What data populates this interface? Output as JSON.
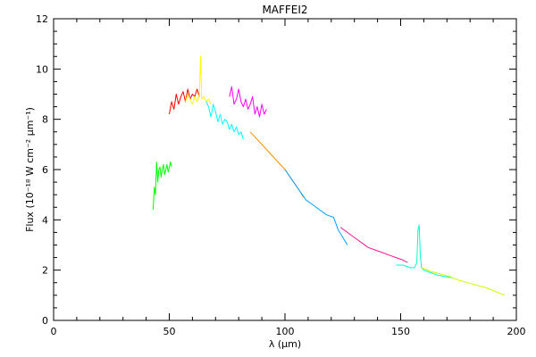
{
  "chart_data": {
    "type": "line",
    "title": "MAFFEI2",
    "xlabel": "λ (μm)",
    "ylabel": "Flux (10⁻¹⁸ W cm⁻² μm⁻¹)",
    "xlim": [
      0,
      200
    ],
    "ylim": [
      0,
      12
    ],
    "x_ticks": [
      0,
      50,
      100,
      150,
      200
    ],
    "y_ticks": [
      0,
      2,
      4,
      6,
      8,
      10,
      12
    ],
    "grid": false,
    "legend": "none",
    "series": [
      {
        "color": "#00ff00",
        "x": [
          43,
          43.5,
          44,
          44.5,
          45,
          45.5,
          46,
          46.5,
          47,
          47.5,
          48,
          48.5,
          49,
          49.5,
          50,
          50.5,
          51
        ],
        "y": [
          4.4,
          5.3,
          5.0,
          6.3,
          5.5,
          6.0,
          6.1,
          5.7,
          6.0,
          6.2,
          5.8,
          6.0,
          6.2,
          5.9,
          6.1,
          6.3,
          6.1
        ]
      },
      {
        "color": "#ff0000",
        "x": [
          50,
          51,
          52,
          53,
          54,
          55,
          56,
          57,
          58,
          59,
          60,
          61,
          62,
          63
        ],
        "y": [
          8.2,
          8.7,
          8.4,
          9.0,
          8.6,
          8.9,
          9.1,
          8.7,
          9.2,
          8.8,
          9.0,
          8.9,
          9.2,
          8.9
        ]
      },
      {
        "color": "#ffff00",
        "x": [
          57,
          58,
          59,
          60,
          61,
          62,
          63,
          63.5,
          64,
          65,
          66,
          67,
          68
        ],
        "y": [
          8.7,
          9.0,
          8.8,
          8.6,
          8.9,
          8.7,
          9.0,
          10.5,
          8.8,
          8.9,
          8.7,
          8.8,
          8.6
        ]
      },
      {
        "color": "#00ffff",
        "x": [
          66,
          67,
          68,
          69,
          70,
          71,
          72,
          73,
          74,
          75,
          76,
          77,
          78,
          79,
          80,
          81,
          82
        ],
        "y": [
          8.7,
          8.5,
          8.1,
          8.6,
          8.3,
          7.9,
          8.2,
          7.8,
          8.0,
          7.9,
          7.6,
          7.8,
          7.5,
          7.7,
          7.4,
          7.5,
          7.2
        ]
      },
      {
        "color": "#ff00ff",
        "x": [
          76,
          77,
          78,
          79,
          80,
          81,
          82,
          83,
          84,
          85,
          86,
          87,
          88,
          89,
          90,
          91,
          92
        ],
        "y": [
          8.9,
          9.3,
          8.6,
          8.8,
          9.2,
          8.7,
          8.5,
          8.8,
          8.4,
          8.6,
          8.9,
          8.2,
          8.5,
          8.1,
          8.6,
          8.2,
          8.4
        ]
      },
      {
        "color": "#ff8c00",
        "x": [
          85,
          88,
          91,
          94,
          97,
          100,
          103,
          106,
          108
        ],
        "y": [
          7.5,
          7.2,
          6.9,
          6.6,
          6.3,
          6.0,
          5.6,
          5.2,
          4.9
        ]
      },
      {
        "color": "#00a0ff",
        "x": [
          100,
          103,
          106,
          109,
          112,
          115,
          118,
          121,
          123,
          125,
          127
        ],
        "y": [
          6.0,
          5.6,
          5.2,
          4.8,
          4.6,
          4.4,
          4.2,
          4.1,
          3.6,
          3.3,
          3.0
        ]
      },
      {
        "color": "#ff1493",
        "x": [
          124,
          127,
          130,
          133,
          136,
          139,
          142,
          145,
          148,
          151,
          153
        ],
        "y": [
          3.7,
          3.5,
          3.3,
          3.1,
          2.9,
          2.8,
          2.7,
          2.6,
          2.5,
          2.4,
          2.3
        ]
      },
      {
        "color": "#00ffcc",
        "x": [
          148,
          151,
          154,
          156,
          157,
          157.5,
          158,
          158.5,
          159,
          160,
          163,
          166,
          169,
          172
        ],
        "y": [
          2.2,
          2.2,
          2.1,
          2.1,
          2.3,
          3.6,
          3.8,
          2.6,
          2.1,
          2.0,
          1.9,
          1.8,
          1.75,
          1.7
        ]
      },
      {
        "color": "#ccff00",
        "x": [
          159,
          163,
          167,
          171,
          175,
          179,
          183,
          187,
          191,
          195
        ],
        "y": [
          2.1,
          1.95,
          1.85,
          1.75,
          1.6,
          1.5,
          1.4,
          1.3,
          1.15,
          1.0
        ]
      }
    ]
  }
}
